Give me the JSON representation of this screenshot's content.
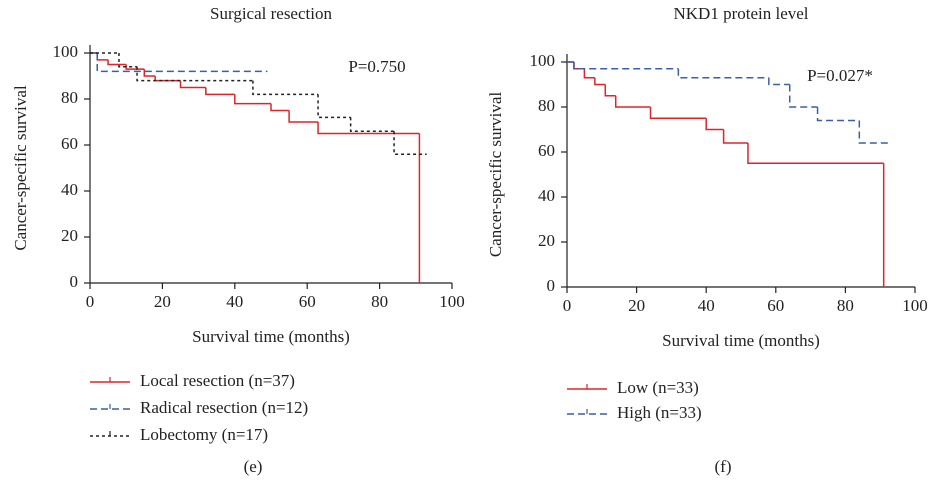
{
  "chart_data": [
    {
      "type": "step",
      "title": "Surgical resection",
      "annotation": "P=0.750",
      "xlabel": "Survival time (months)",
      "ylabel": "Cancer-specific survival",
      "panel_label": "(e)",
      "xlim": [
        0,
        100
      ],
      "ylim": [
        0,
        100
      ],
      "xticks": [
        0,
        20,
        40,
        60,
        80,
        100
      ],
      "yticks": [
        0,
        20,
        40,
        60,
        80,
        100
      ],
      "series": [
        {
          "name": "Local resection (n=37)",
          "color": "#d9262c",
          "dash": "solid",
          "x": [
            0,
            2,
            5,
            10,
            15,
            18,
            25,
            32,
            40,
            50,
            55,
            63,
            91
          ],
          "values": [
            100,
            97,
            95,
            93,
            90,
            88,
            85,
            82,
            78,
            75,
            70,
            65,
            0
          ]
        },
        {
          "name": "Radical resection (n=12)",
          "color": "#3a5fa8",
          "dash": "dashed",
          "x": [
            0,
            2,
            49
          ],
          "values": [
            100,
            92,
            92
          ]
        },
        {
          "name": "Lobectomy (n=17)",
          "color": "#222222",
          "dash": "dotted",
          "x": [
            0,
            8,
            13,
            45,
            63,
            72,
            84,
            93
          ],
          "values": [
            100,
            94,
            88,
            82,
            72,
            66,
            56,
            56
          ]
        }
      ]
    },
    {
      "type": "step",
      "title": "NKD1 protein level",
      "annotation": "P=0.027*",
      "xlabel": "Survival time (months)",
      "ylabel": "Cancer-specific survival",
      "panel_label": "(f)",
      "xlim": [
        0,
        100
      ],
      "ylim": [
        0,
        100
      ],
      "xticks": [
        0,
        20,
        40,
        60,
        80,
        100
      ],
      "yticks": [
        0,
        20,
        40,
        60,
        80,
        100
      ],
      "series": [
        {
          "name": "Low (n=33)",
          "color": "#d9262c",
          "dash": "solid",
          "x": [
            0,
            2,
            5,
            8,
            11,
            14,
            24,
            40,
            45,
            52,
            91
          ],
          "values": [
            100,
            97,
            93,
            90,
            85,
            80,
            75,
            70,
            64,
            55,
            0
          ]
        },
        {
          "name": "High (n=33)",
          "color": "#3a5fa8",
          "dash": "dashed",
          "x": [
            0,
            2,
            32,
            58,
            64,
            72,
            84,
            93
          ],
          "values": [
            100,
            97,
            93,
            90,
            80,
            74,
            64,
            64
          ]
        }
      ]
    }
  ]
}
